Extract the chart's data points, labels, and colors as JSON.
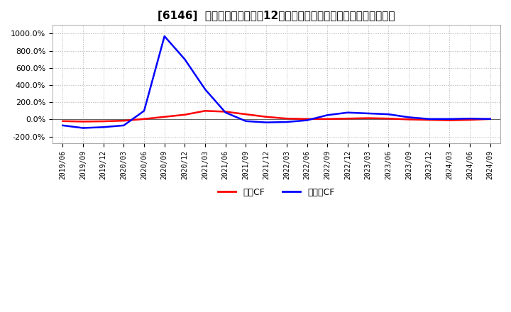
{
  "title": "[6146]  キャッシュフローの12か月移動合計の対前年同期増減率の推移",
  "legend_labels": [
    "営業CF",
    "フリーCF"
  ],
  "line_colors": [
    "#ff0000",
    "#0000ff"
  ],
  "background_color": "#ffffff",
  "plot_bg_color": "#ffffff",
  "ylim": [
    -280,
    1100
  ],
  "yticks": [
    -200,
    0,
    200,
    400,
    600,
    800,
    1000
  ],
  "ytick_labels": [
    "-200.0%",
    "0.0%",
    "200.0%",
    "400.0%",
    "600.0%",
    "800.0%",
    "1000.0%"
  ],
  "dates": [
    "2019/06",
    "2019/09",
    "2019/12",
    "2020/03",
    "2020/06",
    "2020/09",
    "2020/12",
    "2021/03",
    "2021/06",
    "2021/09",
    "2021/12",
    "2022/03",
    "2022/06",
    "2022/09",
    "2022/12",
    "2023/03",
    "2023/06",
    "2023/09",
    "2023/12",
    "2024/03",
    "2024/06",
    "2024/09"
  ],
  "eigyo_cf": [
    -20,
    -25,
    -22,
    -15,
    5,
    30,
    55,
    100,
    90,
    60,
    30,
    10,
    5,
    5,
    10,
    15,
    10,
    0,
    -5,
    -10,
    -5,
    5
  ],
  "free_cf": [
    -70,
    -100,
    -90,
    -70,
    100,
    970,
    700,
    350,
    80,
    -20,
    -35,
    -30,
    -10,
    50,
    80,
    70,
    60,
    25,
    5,
    5,
    10,
    5
  ]
}
